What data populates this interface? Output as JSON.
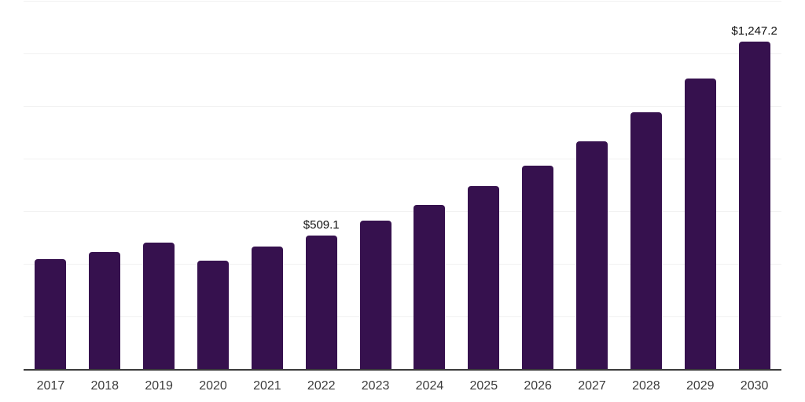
{
  "chart_data": {
    "type": "bar",
    "title": "",
    "xlabel": "",
    "ylabel": "",
    "categories": [
      "2017",
      "2018",
      "2019",
      "2020",
      "2021",
      "2022",
      "2023",
      "2024",
      "2025",
      "2026",
      "2027",
      "2028",
      "2029",
      "2030"
    ],
    "values": [
      421.0,
      448.0,
      484.0,
      415.0,
      469.0,
      509.1,
      567.0,
      627.0,
      699.0,
      777.0,
      870.0,
      980.0,
      1107.0,
      1247.2
    ],
    "data_labels": [
      "",
      "",
      "",
      "",
      "",
      "$509.1",
      "",
      "",
      "",
      "",
      "",
      "",
      "",
      "$1,247.2"
    ],
    "ylim": [
      0,
      1400
    ],
    "gridline_step": 200,
    "grid": true,
    "legend": "none",
    "y_axis_tick_labels_visible": false
  },
  "colors": {
    "background": "#ffffff",
    "bar": "#36114E",
    "gridline": "#f1f1f1",
    "axis_line": "#3b3b3b",
    "tick_text": "#3c3c3c",
    "value_label_text": "#111111"
  }
}
